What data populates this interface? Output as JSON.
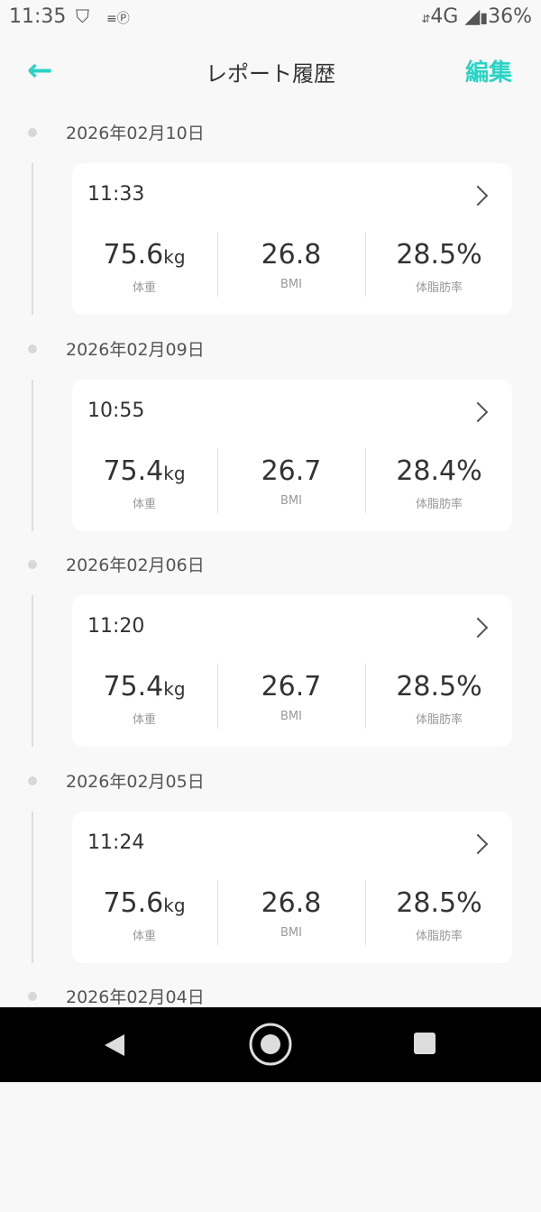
{
  "status": {
    "time": "11:35",
    "network": "4G",
    "battery": "36%"
  },
  "header": {
    "title": "レポート履歴",
    "edit_label": "編集"
  },
  "labels": {
    "weight": "体重",
    "bmi": "BMI",
    "fat": "体脂肪率",
    "kg": "kg"
  },
  "reports": [
    {
      "date": "2026年02月10日",
      "time": "11:33",
      "weight": "75.6",
      "bmi": "26.8",
      "fat": "28.5%"
    },
    {
      "date": "2026年02月09日",
      "time": "10:55",
      "weight": "75.4",
      "bmi": "26.7",
      "fat": "28.4%"
    },
    {
      "date": "2026年02月06日",
      "time": "11:20",
      "weight": "75.4",
      "bmi": "26.7",
      "fat": "28.5%"
    },
    {
      "date": "2026年02月05日",
      "time": "11:24",
      "weight": "75.6",
      "bmi": "26.8",
      "fat": "28.5%"
    },
    {
      "date": "2026年02月04日"
    }
  ],
  "colors": {
    "accent": "#2ad4c4"
  }
}
